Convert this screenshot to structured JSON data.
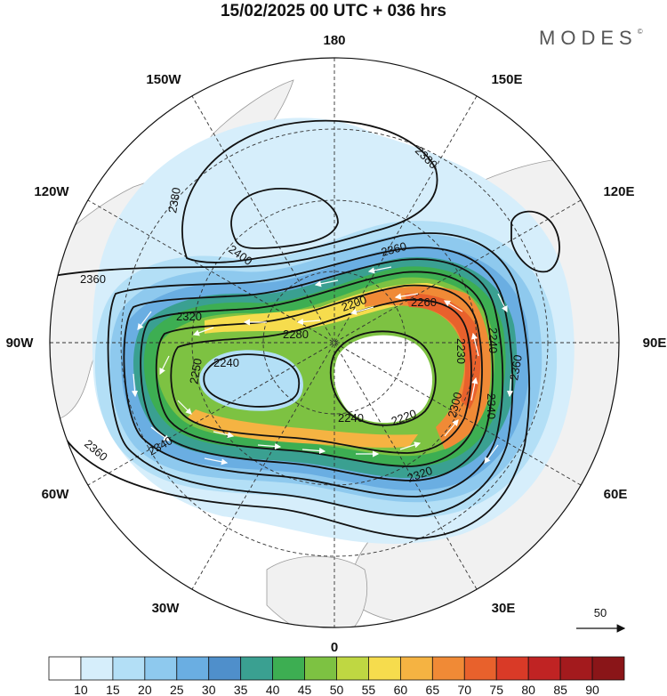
{
  "title": "15/02/2025  00 UTC  + 036 hrs",
  "brand": {
    "name": "MODES",
    "mark": "©"
  },
  "longitude_labels": [
    {
      "id": "lon-180",
      "text": "180"
    },
    {
      "id": "lon-150e",
      "text": "150E"
    },
    {
      "id": "lon-120e",
      "text": "120E"
    },
    {
      "id": "lon-90e",
      "text": "90E"
    },
    {
      "id": "lon-60e",
      "text": "60E"
    },
    {
      "id": "lon-30e",
      "text": "30E"
    },
    {
      "id": "lon-0",
      "text": "0"
    },
    {
      "id": "lon-30w",
      "text": "30W"
    },
    {
      "id": "lon-60w",
      "text": "60W"
    },
    {
      "id": "lon-90w",
      "text": "90W"
    },
    {
      "id": "lon-120w",
      "text": "120W"
    },
    {
      "id": "lon-150w",
      "text": "150W"
    }
  ],
  "contour_labels": [
    "2380",
    "2380",
    "2400",
    "2360",
    "2360",
    "2320",
    "2280",
    "2250",
    "2240",
    "2260",
    "2200",
    "2230",
    "2240",
    "2240",
    "2220",
    "2300",
    "2340",
    "2360",
    "2320",
    "2340",
    "2360"
  ],
  "vector_reference": "50",
  "colorbar": {
    "ticks": [
      "10",
      "15",
      "20",
      "25",
      "30",
      "35",
      "40",
      "45",
      "50",
      "55",
      "60",
      "65",
      "70",
      "75",
      "80",
      "85",
      "90"
    ],
    "colors": [
      "#ffffff",
      "#d6eefb",
      "#b3dff6",
      "#8ec9ee",
      "#6aaee2",
      "#4f8fcb",
      "#3aa091",
      "#3dae52",
      "#7dc242",
      "#bfd742",
      "#f6dc4d",
      "#f5b342",
      "#f08a36",
      "#e8612c",
      "#d93a27",
      "#c02323",
      "#a31a1d",
      "#8a1518"
    ]
  }
}
